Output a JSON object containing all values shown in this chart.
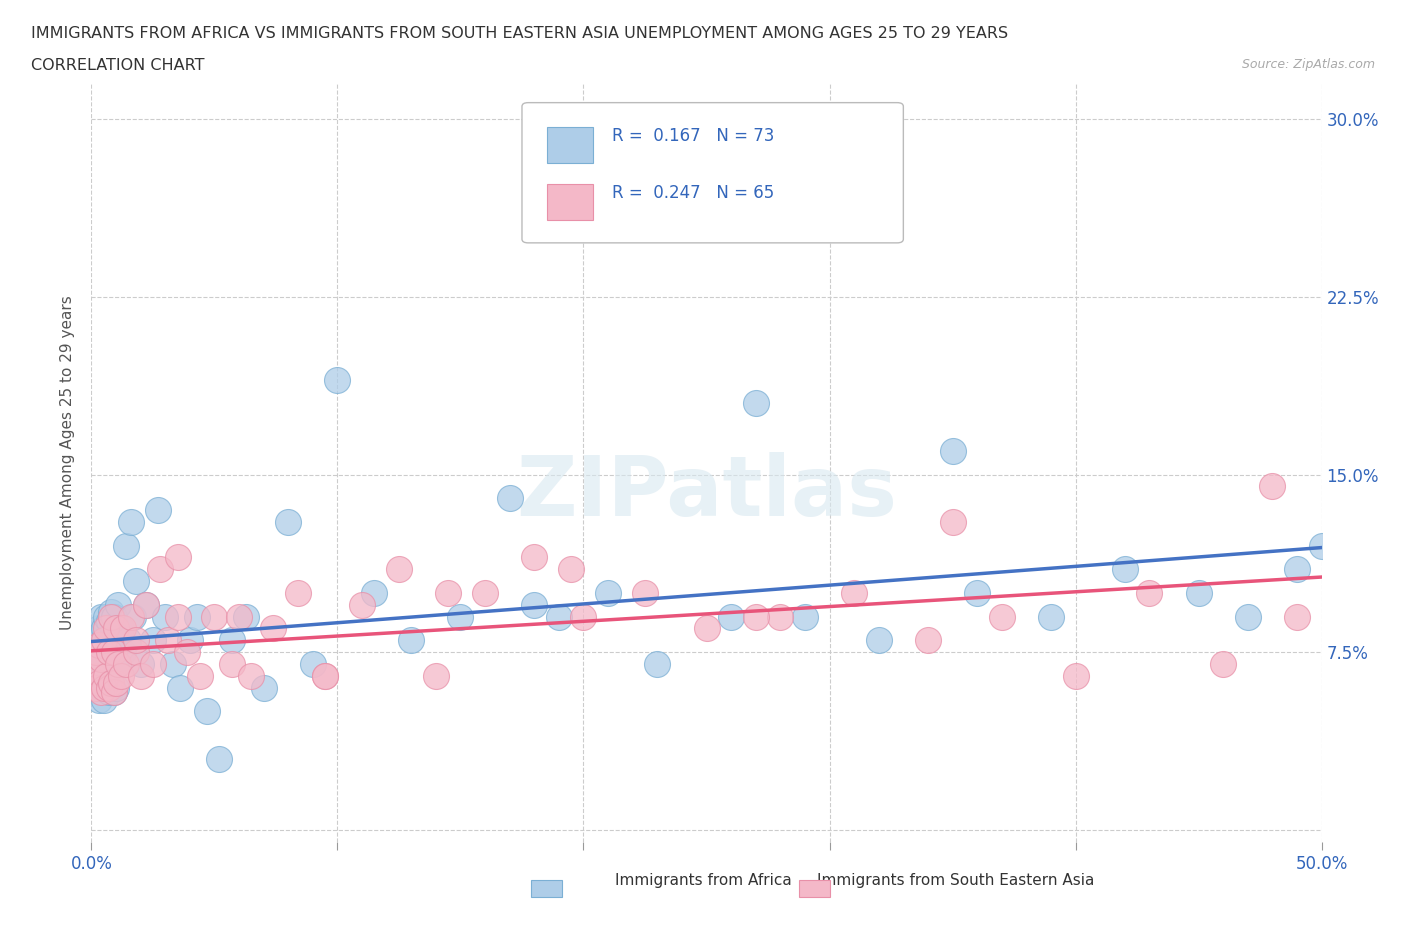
{
  "title_line1": "IMMIGRANTS FROM AFRICA VS IMMIGRANTS FROM SOUTH EASTERN ASIA UNEMPLOYMENT AMONG AGES 25 TO 29 YEARS",
  "title_line2": "CORRELATION CHART",
  "source": "Source: ZipAtlas.com",
  "ylabel": "Unemployment Among Ages 25 to 29 years",
  "xlim": [
    0.0,
    0.5
  ],
  "ylim": [
    -0.005,
    0.315
  ],
  "xticks": [
    0.0,
    0.1,
    0.2,
    0.3,
    0.4,
    0.5
  ],
  "yticks": [
    0.0,
    0.075,
    0.15,
    0.225,
    0.3
  ],
  "xticklabels": [
    "0.0%",
    "",
    "",
    "",
    "",
    "50.0%"
  ],
  "yticklabels": [
    "",
    "7.5%",
    "15.0%",
    "22.5%",
    "30.0%"
  ],
  "africa_R": 0.167,
  "africa_N": 73,
  "sea_R": 0.247,
  "sea_N": 65,
  "africa_color": "#AECDE8",
  "africa_edge": "#7BAFD4",
  "sea_color": "#F4B8C8",
  "sea_edge": "#E890A8",
  "watermark": "ZIPatlas",
  "africa_x": [
    0.001,
    0.001,
    0.002,
    0.002,
    0.003,
    0.003,
    0.003,
    0.004,
    0.004,
    0.004,
    0.005,
    0.005,
    0.005,
    0.006,
    0.006,
    0.006,
    0.007,
    0.007,
    0.007,
    0.008,
    0.008,
    0.008,
    0.009,
    0.009,
    0.009,
    0.01,
    0.01,
    0.011,
    0.011,
    0.012,
    0.013,
    0.014,
    0.015,
    0.016,
    0.017,
    0.018,
    0.02,
    0.022,
    0.025,
    0.027,
    0.03,
    0.033,
    0.036,
    0.04,
    0.043,
    0.047,
    0.052,
    0.057,
    0.063,
    0.07,
    0.08,
    0.09,
    0.1,
    0.115,
    0.13,
    0.15,
    0.17,
    0.19,
    0.21,
    0.23,
    0.26,
    0.29,
    0.32,
    0.36,
    0.39,
    0.42,
    0.45,
    0.47,
    0.49,
    0.5,
    0.35,
    0.27,
    0.18
  ],
  "africa_y": [
    0.065,
    0.07,
    0.06,
    0.08,
    0.055,
    0.07,
    0.085,
    0.06,
    0.075,
    0.09,
    0.055,
    0.07,
    0.085,
    0.06,
    0.075,
    0.09,
    0.058,
    0.072,
    0.088,
    0.062,
    0.078,
    0.092,
    0.058,
    0.075,
    0.09,
    0.06,
    0.08,
    0.07,
    0.095,
    0.085,
    0.075,
    0.12,
    0.08,
    0.13,
    0.09,
    0.105,
    0.07,
    0.095,
    0.08,
    0.135,
    0.09,
    0.07,
    0.06,
    0.08,
    0.09,
    0.05,
    0.03,
    0.08,
    0.09,
    0.06,
    0.13,
    0.07,
    0.19,
    0.1,
    0.08,
    0.09,
    0.14,
    0.09,
    0.1,
    0.07,
    0.09,
    0.09,
    0.08,
    0.1,
    0.09,
    0.11,
    0.1,
    0.09,
    0.11,
    0.12,
    0.16,
    0.18,
    0.095
  ],
  "sea_x": [
    0.001,
    0.001,
    0.002,
    0.002,
    0.003,
    0.003,
    0.004,
    0.004,
    0.005,
    0.005,
    0.006,
    0.006,
    0.007,
    0.007,
    0.008,
    0.008,
    0.009,
    0.009,
    0.01,
    0.01,
    0.011,
    0.012,
    0.013,
    0.014,
    0.016,
    0.018,
    0.02,
    0.022,
    0.025,
    0.028,
    0.031,
    0.035,
    0.039,
    0.044,
    0.05,
    0.057,
    0.065,
    0.074,
    0.084,
    0.095,
    0.11,
    0.125,
    0.14,
    0.16,
    0.18,
    0.2,
    0.225,
    0.25,
    0.28,
    0.31,
    0.34,
    0.37,
    0.4,
    0.43,
    0.46,
    0.49,
    0.35,
    0.27,
    0.195,
    0.145,
    0.095,
    0.06,
    0.035,
    0.018,
    0.48
  ],
  "sea_y": [
    0.065,
    0.07,
    0.06,
    0.075,
    0.062,
    0.078,
    0.058,
    0.072,
    0.06,
    0.08,
    0.065,
    0.085,
    0.06,
    0.075,
    0.062,
    0.09,
    0.058,
    0.075,
    0.062,
    0.085,
    0.07,
    0.065,
    0.085,
    0.07,
    0.09,
    0.075,
    0.065,
    0.095,
    0.07,
    0.11,
    0.08,
    0.09,
    0.075,
    0.065,
    0.09,
    0.07,
    0.065,
    0.085,
    0.1,
    0.065,
    0.095,
    0.11,
    0.065,
    0.1,
    0.115,
    0.09,
    0.1,
    0.085,
    0.09,
    0.1,
    0.08,
    0.09,
    0.065,
    0.1,
    0.07,
    0.09,
    0.13,
    0.09,
    0.11,
    0.1,
    0.065,
    0.09,
    0.115,
    0.08,
    0.145
  ]
}
